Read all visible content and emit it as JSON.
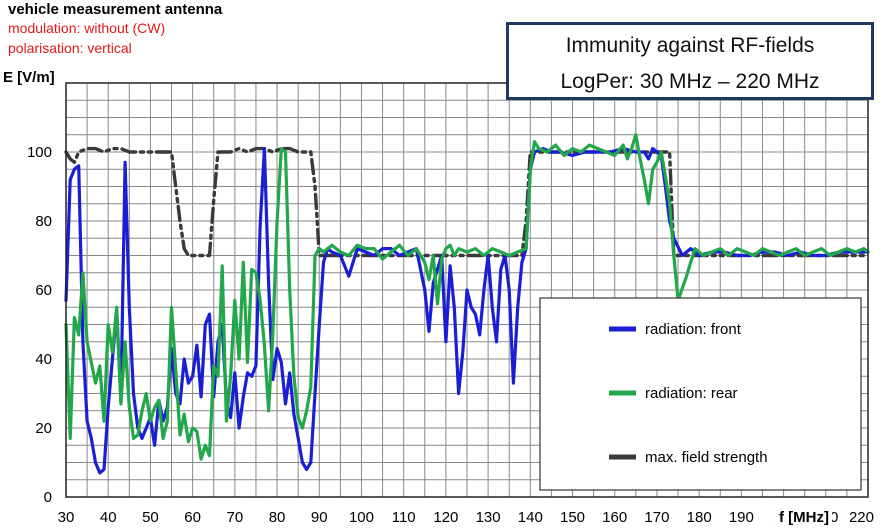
{
  "header": {
    "title": "vehicle measurement antenna",
    "modulation": "modulation: without (CW)",
    "polarisation": "polarisation: vertical"
  },
  "info_box": {
    "line1": "Immunity against RF-fields",
    "line2": "LogPer: 30 MHz  – 220 MHz"
  },
  "colors": {
    "front": "#1a1fd6",
    "rear": "#22a84a",
    "max": "#3a3a3a",
    "header_red": "#e0191b",
    "box_border": "#1c3a5e"
  },
  "chart_data": {
    "type": "line",
    "title": "",
    "xlabel": "f [MHz]",
    "ylabel": "E [V/m]",
    "xlim": [
      30,
      220
    ],
    "ylim": [
      0,
      120
    ],
    "x_ticks": [
      30,
      40,
      50,
      60,
      70,
      80,
      90,
      100,
      110,
      120,
      130,
      140,
      150,
      160,
      170,
      180,
      190,
      200,
      210,
      220
    ],
    "y_ticks": [
      0,
      20,
      40,
      60,
      80,
      100
    ],
    "grid": true,
    "legend_position": "bottom-right",
    "series": [
      {
        "name": "radiation: front",
        "color": "#1a1fd6",
        "x": [
          30,
          31,
          32,
          33,
          34,
          35,
          36,
          37,
          38,
          39,
          40,
          41,
          42,
          43,
          44,
          45,
          46,
          47,
          48,
          49,
          50,
          51,
          52,
          53,
          54,
          55,
          56,
          57,
          58,
          59,
          60,
          61,
          62,
          63,
          64,
          65,
          66,
          67,
          68,
          69,
          70,
          71,
          72,
          73,
          74,
          75,
          76,
          77,
          78,
          79,
          80,
          81,
          82,
          83,
          84,
          85,
          86,
          87,
          88,
          89,
          90,
          91,
          92,
          93,
          95,
          97,
          99,
          101,
          103,
          105,
          107,
          109,
          111,
          113,
          115,
          116,
          117,
          118,
          119,
          120,
          121,
          122,
          123,
          124,
          125,
          126,
          127,
          128,
          129,
          130,
          131,
          132,
          133,
          134,
          135,
          136,
          137,
          138,
          139,
          140,
          141,
          143,
          145,
          147,
          150,
          153,
          156,
          159,
          162,
          165,
          167,
          168,
          169,
          170,
          171,
          172,
          173,
          174,
          176,
          178,
          180,
          183,
          186,
          189,
          192,
          195,
          198,
          201,
          204,
          207,
          210,
          213,
          216,
          219,
          220
        ],
        "values": [
          57,
          92,
          95,
          96,
          45,
          22,
          17,
          10,
          7,
          8,
          26,
          40,
          54,
          28,
          97,
          55,
          30,
          20,
          17,
          20,
          23,
          15,
          28,
          22,
          26,
          43,
          30,
          27,
          40,
          33,
          35,
          44,
          29,
          50,
          53,
          29,
          45,
          50,
          28,
          23,
          36,
          20,
          29,
          36,
          35,
          38,
          79,
          101,
          62,
          34,
          43,
          39,
          27,
          36,
          24,
          17,
          10,
          8,
          10,
          30,
          50,
          68,
          72,
          71,
          70,
          64,
          72,
          71,
          70,
          72,
          72,
          70,
          71,
          72,
          60,
          48,
          62,
          66,
          70,
          45,
          67,
          55,
          30,
          42,
          60,
          55,
          53,
          47,
          60,
          70,
          55,
          45,
          66,
          70,
          60,
          33,
          55,
          68,
          72,
          95,
          100,
          101,
          100,
          100,
          99,
          100,
          100,
          100,
          101,
          100,
          100,
          98,
          101,
          100,
          99,
          90,
          80,
          75,
          70,
          72,
          70,
          71,
          71,
          70,
          70,
          71,
          71,
          70,
          71,
          70,
          70,
          71,
          71,
          71,
          71
        ]
      },
      {
        "name": "radiation: rear",
        "color": "#22a84a",
        "x": [
          30,
          31,
          32,
          33,
          34,
          35,
          36,
          37,
          38,
          39,
          40,
          41,
          42,
          43,
          44,
          45,
          46,
          47,
          48,
          49,
          50,
          51,
          52,
          53,
          54,
          55,
          56,
          57,
          58,
          59,
          60,
          61,
          62,
          63,
          64,
          65,
          66,
          67,
          68,
          69,
          70,
          71,
          72,
          73,
          74,
          75,
          76,
          77,
          78,
          79,
          80,
          81,
          82,
          83,
          84,
          85,
          86,
          87,
          88,
          89,
          90,
          91,
          92,
          93,
          95,
          97,
          99,
          101,
          103,
          105,
          107,
          109,
          111,
          113,
          115,
          116,
          117,
          118,
          119,
          120,
          121,
          122,
          123,
          125,
          127,
          129,
          131,
          133,
          135,
          137,
          139,
          140,
          141,
          142,
          144,
          146,
          148,
          150,
          152,
          154,
          156,
          158,
          160,
          162,
          163,
          164,
          165,
          166,
          167,
          168,
          169,
          170,
          171,
          172,
          173,
          174,
          175,
          177,
          179,
          181,
          183,
          185,
          187,
          189,
          191,
          193,
          195,
          197,
          199,
          201,
          203,
          205,
          207,
          209,
          211,
          213,
          215,
          217,
          219,
          220
        ],
        "values": [
          50,
          17,
          52,
          47,
          65,
          45,
          39,
          33,
          38,
          22,
          50,
          42,
          55,
          27,
          45,
          26,
          17,
          18,
          25,
          30,
          22,
          26,
          28,
          17,
          22,
          55,
          37,
          18,
          24,
          16,
          20,
          19,
          11,
          15,
          12,
          38,
          35,
          67,
          22,
          35,
          57,
          40,
          68,
          39,
          66,
          65,
          57,
          44,
          25,
          47,
          80,
          101,
          100,
          60,
          35,
          23,
          20,
          25,
          32,
          70,
          72,
          71,
          72,
          73,
          71,
          70,
          73,
          72,
          72,
          69,
          71,
          73,
          70,
          72,
          68,
          63,
          70,
          56,
          69,
          72,
          73,
          70,
          72,
          71,
          72,
          70,
          72,
          71,
          70,
          71,
          72,
          95,
          103,
          101,
          100,
          102,
          99,
          101,
          100,
          102,
          101,
          100,
          99,
          102,
          98,
          101,
          105,
          98,
          92,
          85,
          95,
          97,
          100,
          93,
          85,
          70,
          57,
          64,
          72,
          70,
          71,
          72,
          70,
          72,
          71,
          70,
          72,
          71,
          70,
          71,
          72,
          70,
          71,
          72,
          70,
          71,
          72,
          71,
          72,
          71
        ]
      },
      {
        "name": "max. field strength",
        "color": "#3a3a3a",
        "dashed": true,
        "x": [
          30,
          31,
          32,
          33,
          35,
          37,
          39,
          41,
          43,
          45,
          47,
          49,
          51,
          53,
          54,
          55,
          56,
          57,
          58,
          59,
          60,
          61,
          62,
          63,
          64,
          65,
          66,
          67,
          69,
          71,
          73,
          75,
          77,
          79,
          81,
          83,
          85,
          87,
          88,
          89,
          90,
          92,
          95,
          100,
          110,
          120,
          130,
          138,
          139,
          140,
          141,
          145,
          150,
          160,
          168,
          169,
          170,
          171,
          172,
          173,
          174,
          180,
          190,
          200,
          210,
          220
        ],
        "values": [
          100,
          98,
          97,
          100,
          101,
          101,
          100,
          101,
          101,
          100,
          100,
          100,
          100,
          100,
          100,
          100,
          90,
          80,
          72,
          70,
          70,
          70,
          70,
          70,
          70,
          86,
          100,
          100,
          100,
          101,
          100,
          101,
          101,
          100,
          101,
          101,
          100,
          100,
          100,
          90,
          70,
          70,
          70,
          70,
          70,
          70,
          70,
          70,
          80,
          100,
          100,
          100,
          100,
          100,
          100,
          100,
          100,
          100,
          100,
          100,
          70,
          70,
          70,
          70,
          70,
          70
        ]
      }
    ]
  }
}
